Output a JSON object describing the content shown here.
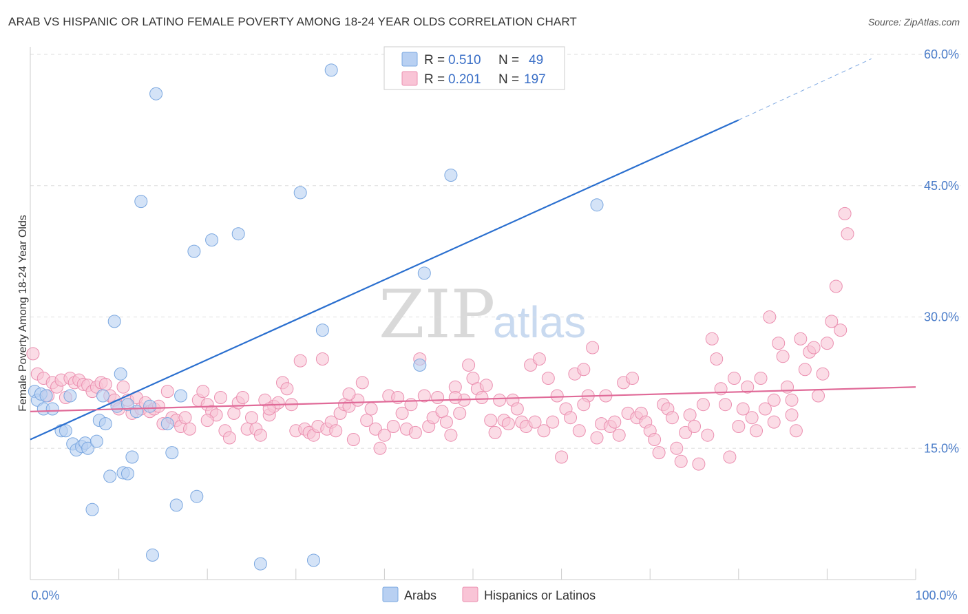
{
  "title": "ARAB VS HISPANIC OR LATINO FEMALE POVERTY AMONG 18-24 YEAR OLDS CORRELATION CHART",
  "source": "Source: ZipAtlas.com",
  "watermark": {
    "zip": "ZIP",
    "atlas": "atlas"
  },
  "colors": {
    "blue_fill": "#b8d0f2",
    "blue_stroke": "#7aa7e0",
    "blue_line": "#2a6fcf",
    "pink_fill": "#f9c4d6",
    "pink_stroke": "#eb8fb0",
    "pink_line": "#e06a98",
    "axis_text": "#4a7cc9",
    "grid": "#dddddd"
  },
  "legend_top": {
    "rows": [
      {
        "r_label": "R =",
        "r_value": "0.510",
        "n_label": "N =",
        "n_value": "49",
        "color": "blue"
      },
      {
        "r_label": "R =",
        "r_value": "0.201",
        "n_label": "N =",
        "n_value": "197",
        "color": "pink"
      }
    ]
  },
  "legend_bottom": {
    "items": [
      "Arabs",
      "Hispanics or Latinos"
    ]
  },
  "chart_data": {
    "type": "scatter",
    "title": "ARAB VS HISPANIC OR LATINO FEMALE POVERTY AMONG 18-24 YEAR OLDS CORRELATION CHART",
    "xlabel": "",
    "ylabel": "Female Poverty Among 18-24 Year Olds",
    "xlim": [
      0,
      100
    ],
    "ylim": [
      0,
      60
    ],
    "x_tick_labels": [
      "0.0%",
      "100.0%"
    ],
    "y_ticks": [
      15,
      30,
      45,
      60
    ],
    "y_tick_labels": [
      "15.0%",
      "30.0%",
      "45.0%",
      "60.0%"
    ],
    "grid": true,
    "legend_placement": "top-center",
    "series": [
      {
        "name": "Arabs",
        "r": 0.51,
        "n": 49,
        "trend": {
          "x0": 0,
          "y0": 16,
          "x1": 80,
          "y1": 52.5,
          "dashed_to_x": 95,
          "dashed_to_y": 59.5
        },
        "points": [
          [
            0.5,
            21.5
          ],
          [
            0.8,
            20.5
          ],
          [
            1.2,
            21.2
          ],
          [
            1.5,
            19.5
          ],
          [
            1.8,
            21
          ],
          [
            2.5,
            19.5
          ],
          [
            3.5,
            17
          ],
          [
            4,
            17
          ],
          [
            4.5,
            21
          ],
          [
            4.8,
            15.5
          ],
          [
            5.2,
            14.8
          ],
          [
            5.8,
            15.2
          ],
          [
            6.2,
            15.6
          ],
          [
            6.5,
            15
          ],
          [
            7,
            8
          ],
          [
            7.5,
            15.8
          ],
          [
            7.8,
            18.2
          ],
          [
            8.2,
            21
          ],
          [
            8.5,
            17.8
          ],
          [
            9,
            11.8
          ],
          [
            9.5,
            29.5
          ],
          [
            9.8,
            19.8
          ],
          [
            10.2,
            23.5
          ],
          [
            10.5,
            12.2
          ],
          [
            11,
            12.1
          ],
          [
            11.5,
            14
          ],
          [
            12,
            19.2
          ],
          [
            12.5,
            43.2
          ],
          [
            13.5,
            19.8
          ],
          [
            13.8,
            2.8
          ],
          [
            14.2,
            55.5
          ],
          [
            15.5,
            17.8
          ],
          [
            16,
            14.5
          ],
          [
            16.5,
            8.5
          ],
          [
            18.5,
            37.5
          ],
          [
            18.8,
            9.5
          ],
          [
            20.5,
            38.8
          ],
          [
            23.5,
            39.5
          ],
          [
            26,
            1.8
          ],
          [
            30.5,
            44.2
          ],
          [
            32,
            2.2
          ],
          [
            33,
            28.5
          ],
          [
            34,
            58.2
          ],
          [
            44,
            24.5
          ],
          [
            44.5,
            35
          ],
          [
            47.5,
            46.2
          ],
          [
            64,
            42.8
          ],
          [
            17,
            21
          ],
          [
            11,
            20
          ]
        ]
      },
      {
        "name": "Hispanics or Latinos",
        "r": 0.201,
        "n": 197,
        "trend": {
          "x0": 0,
          "y0": 19.2,
          "x1": 100,
          "y1": 22
        },
        "points": [
          [
            0.3,
            25.8
          ],
          [
            0.8,
            23.5
          ],
          [
            1.5,
            23
          ],
          [
            2,
            21
          ],
          [
            2.5,
            22.5
          ],
          [
            3,
            22
          ],
          [
            3.5,
            22.8
          ],
          [
            4,
            20.8
          ],
          [
            4.5,
            23
          ],
          [
            5,
            22.5
          ],
          [
            5.5,
            22.8
          ],
          [
            6,
            22.3
          ],
          [
            6.5,
            22.2
          ],
          [
            7,
            21.5
          ],
          [
            7.5,
            22
          ],
          [
            8,
            22.5
          ],
          [
            8.5,
            22.3
          ],
          [
            9,
            21
          ],
          [
            9.5,
            20.5
          ],
          [
            10,
            19.5
          ],
          [
            10.5,
            22
          ],
          [
            11,
            20.5
          ],
          [
            11.5,
            19
          ],
          [
            12,
            20.8
          ],
          [
            12.5,
            19.5
          ],
          [
            13,
            20.2
          ],
          [
            13.5,
            19.2
          ],
          [
            14,
            19.5
          ],
          [
            14.5,
            19.8
          ],
          [
            15,
            17.8
          ],
          [
            15.5,
            21.5
          ],
          [
            16,
            18.5
          ],
          [
            16.5,
            18.2
          ],
          [
            17,
            17.5
          ],
          [
            17.5,
            18.5
          ],
          [
            18,
            17.2
          ],
          [
            19,
            20.5
          ],
          [
            19.5,
            21.5
          ],
          [
            20,
            20
          ],
          [
            20.5,
            19.2
          ],
          [
            21,
            18.8
          ],
          [
            21.5,
            20.8
          ],
          [
            22,
            17
          ],
          [
            22.5,
            16.2
          ],
          [
            23,
            19
          ],
          [
            23.5,
            20.2
          ],
          [
            24,
            20.8
          ],
          [
            24.5,
            17.2
          ],
          [
            25,
            18.5
          ],
          [
            25.5,
            17.2
          ],
          [
            26,
            16.5
          ],
          [
            26.5,
            20.5
          ],
          [
            27,
            18.8
          ],
          [
            27.5,
            19.8
          ],
          [
            28,
            20.2
          ],
          [
            28.5,
            22.5
          ],
          [
            29,
            21.8
          ],
          [
            29.5,
            20
          ],
          [
            30,
            17
          ],
          [
            30.5,
            25
          ],
          [
            31,
            17.2
          ],
          [
            31.5,
            16.8
          ],
          [
            32,
            16.5
          ],
          [
            32.5,
            17.5
          ],
          [
            33,
            25.2
          ],
          [
            33.5,
            17.2
          ],
          [
            34,
            18
          ],
          [
            34.5,
            17
          ],
          [
            35,
            19
          ],
          [
            35.5,
            20
          ],
          [
            36,
            19.8
          ],
          [
            36.5,
            16
          ],
          [
            37,
            20.5
          ],
          [
            37.5,
            22.5
          ],
          [
            38,
            18.2
          ],
          [
            38.5,
            19.5
          ],
          [
            39,
            17.2
          ],
          [
            39.5,
            15
          ],
          [
            40,
            16.5
          ],
          [
            40.5,
            21
          ],
          [
            41,
            17.5
          ],
          [
            41.5,
            20.8
          ],
          [
            42,
            19
          ],
          [
            42.5,
            17.2
          ],
          [
            43,
            20
          ],
          [
            43.5,
            16.8
          ],
          [
            44,
            25.2
          ],
          [
            44.5,
            21
          ],
          [
            45,
            17.5
          ],
          [
            45.5,
            18.5
          ],
          [
            46,
            20.8
          ],
          [
            46.5,
            19.2
          ],
          [
            47,
            18
          ],
          [
            47.5,
            16.5
          ],
          [
            48,
            22
          ],
          [
            48.5,
            19
          ],
          [
            49,
            20.5
          ],
          [
            49.5,
            24.5
          ],
          [
            50,
            23
          ],
          [
            50.5,
            21.8
          ],
          [
            51,
            20.8
          ],
          [
            51.5,
            22.2
          ],
          [
            52,
            18.2
          ],
          [
            52.5,
            16.8
          ],
          [
            53,
            20.5
          ],
          [
            53.5,
            18.2
          ],
          [
            54,
            17.8
          ],
          [
            54.5,
            20.5
          ],
          [
            55,
            19.5
          ],
          [
            55.5,
            18
          ],
          [
            56,
            17.5
          ],
          [
            56.5,
            24.5
          ],
          [
            57,
            18
          ],
          [
            57.5,
            25.2
          ],
          [
            58,
            17
          ],
          [
            58.5,
            23
          ],
          [
            59,
            18
          ],
          [
            59.5,
            21
          ],
          [
            60,
            14
          ],
          [
            60.5,
            19.5
          ],
          [
            61,
            18.5
          ],
          [
            61.5,
            23.5
          ],
          [
            62,
            17
          ],
          [
            62.5,
            24
          ],
          [
            63,
            21
          ],
          [
            63.5,
            26.5
          ],
          [
            64,
            16.2
          ],
          [
            64.5,
            17.8
          ],
          [
            65,
            21
          ],
          [
            65.5,
            17.5
          ],
          [
            66,
            18
          ],
          [
            66.5,
            16.5
          ],
          [
            67,
            22.5
          ],
          [
            67.5,
            19
          ],
          [
            68,
            23
          ],
          [
            68.5,
            18.5
          ],
          [
            69,
            19
          ],
          [
            69.5,
            18
          ],
          [
            70,
            17
          ],
          [
            70.5,
            16
          ],
          [
            71,
            14.5
          ],
          [
            71.5,
            20
          ],
          [
            72,
            19.5
          ],
          [
            72.5,
            18.5
          ],
          [
            73,
            15
          ],
          [
            73.5,
            13.5
          ],
          [
            74,
            16.8
          ],
          [
            74.5,
            18.8
          ],
          [
            75,
            17.5
          ],
          [
            75.5,
            13.2
          ],
          [
            76,
            20
          ],
          [
            76.5,
            16.5
          ],
          [
            77,
            27.5
          ],
          [
            77.5,
            25.2
          ],
          [
            78,
            21.8
          ],
          [
            78.5,
            20
          ],
          [
            79,
            14
          ],
          [
            79.5,
            23
          ],
          [
            80,
            17.5
          ],
          [
            80.5,
            19.5
          ],
          [
            81,
            22
          ],
          [
            81.5,
            18.5
          ],
          [
            82,
            17
          ],
          [
            82.5,
            23
          ],
          [
            83,
            19.5
          ],
          [
            83.5,
            30
          ],
          [
            84,
            20.5
          ],
          [
            84.5,
            27
          ],
          [
            85,
            25.5
          ],
          [
            85.5,
            22
          ],
          [
            86,
            18.8
          ],
          [
            86.5,
            17
          ],
          [
            87,
            27.5
          ],
          [
            87.5,
            24
          ],
          [
            88,
            26
          ],
          [
            88.5,
            26.5
          ],
          [
            89,
            21
          ],
          [
            89.5,
            23.5
          ],
          [
            90,
            27
          ],
          [
            90.5,
            29.5
          ],
          [
            91,
            33.5
          ],
          [
            91.5,
            28.5
          ],
          [
            92,
            41.8
          ],
          [
            92.3,
            39.5
          ],
          [
            86,
            20.5
          ],
          [
            84,
            18
          ],
          [
            62.5,
            20
          ],
          [
            48,
            20.8
          ],
          [
            36,
            21.2
          ],
          [
            27,
            19.5
          ],
          [
            20,
            18.2
          ]
        ]
      }
    ]
  }
}
